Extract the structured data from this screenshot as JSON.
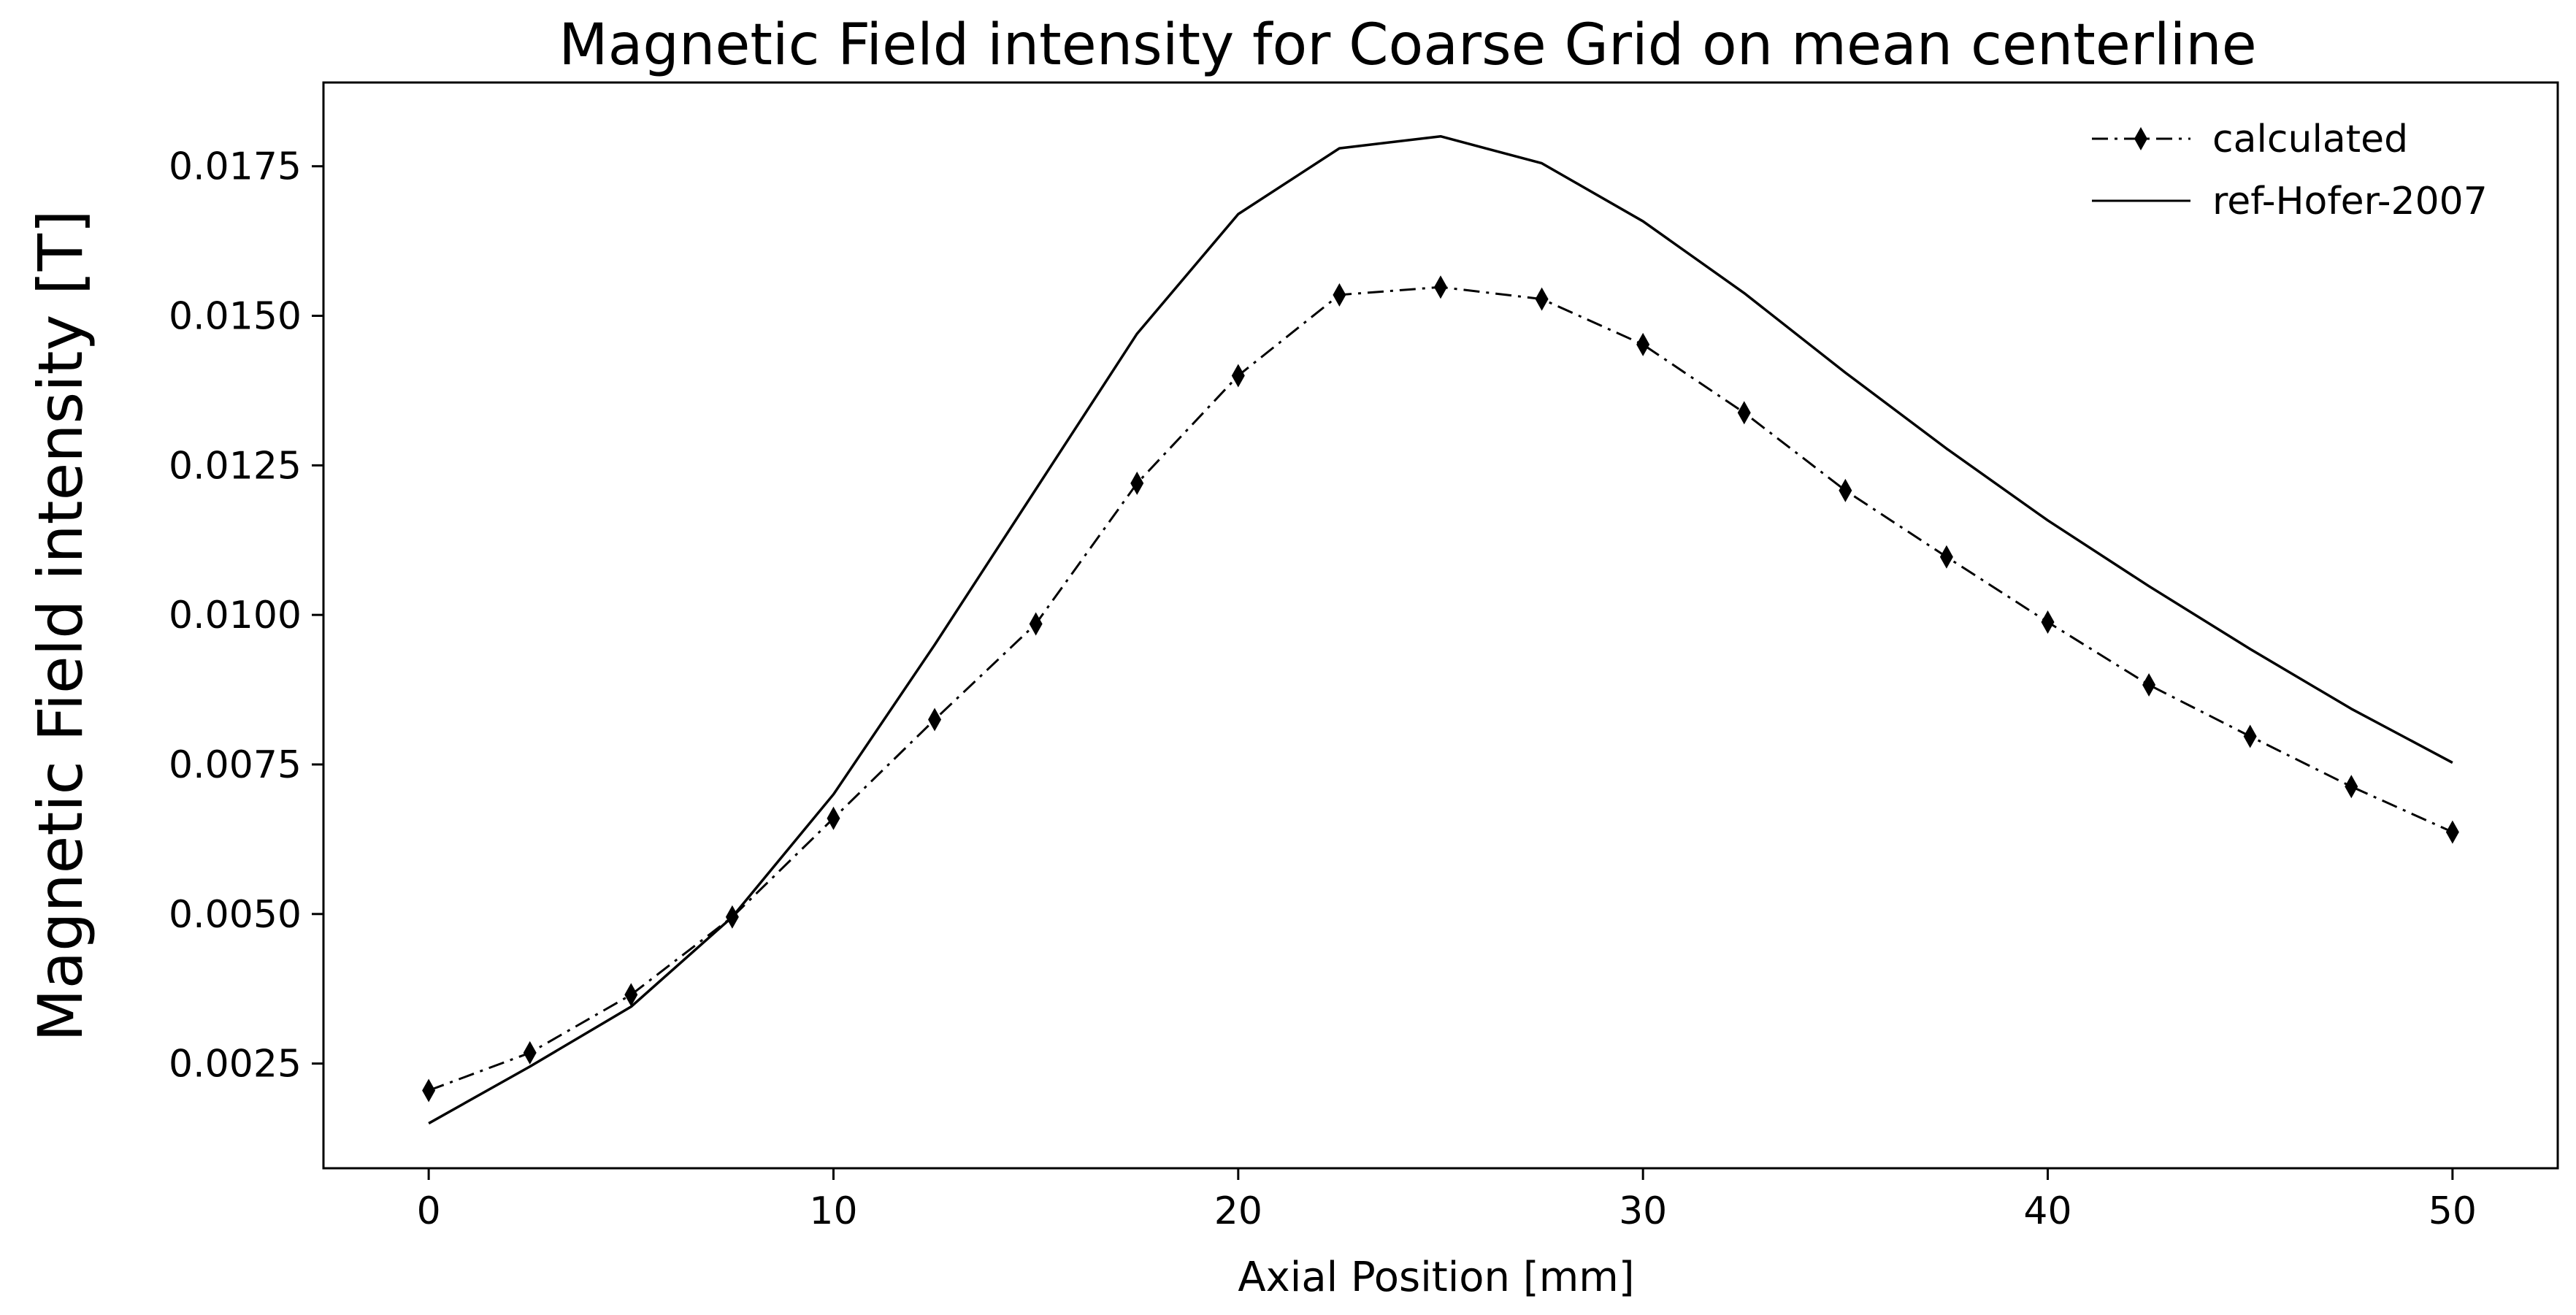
{
  "chart_data": {
    "type": "line",
    "title": "Magnetic Field intensity for Coarse Grid on mean centerline",
    "xlabel": "Axial Position [mm]",
    "ylabel": "Magnetic Field intensity [T]",
    "xlim": [
      -2.6,
      52.6
    ],
    "ylim": [
      0.00075,
      0.0189
    ],
    "xticks": [
      0,
      10,
      20,
      30,
      40,
      50
    ],
    "xtick_labels": [
      "0",
      "10",
      "20",
      "30",
      "40",
      "50"
    ],
    "yticks": [
      0.0025,
      0.005,
      0.0075,
      0.01,
      0.0125,
      0.015,
      0.0175
    ],
    "ytick_labels": [
      "0.0025",
      "0.0050",
      "0.0075",
      "0.0100",
      "0.0125",
      "0.0150",
      "0.0175"
    ],
    "grid": false,
    "legend_position": "top-right",
    "series": [
      {
        "name": "calculated",
        "style": "dash-dot with diamond markers",
        "color": "#000000",
        "x": [
          0,
          2.5,
          5,
          7.5,
          10,
          12.5,
          15,
          17.5,
          20,
          22.5,
          25,
          27.5,
          30,
          32.5,
          35,
          37.5,
          40,
          42.5,
          45,
          47.5,
          50
        ],
        "values": [
          0.00205,
          0.00268,
          0.00365,
          0.00495,
          0.0066,
          0.00825,
          0.00985,
          0.0122,
          0.014,
          0.01535,
          0.01548,
          0.01528,
          0.01452,
          0.01338,
          0.01208,
          0.01097,
          0.00988,
          0.00883,
          0.00797,
          0.00713,
          0.00637
        ]
      },
      {
        "name": "ref-Hofer-2007",
        "style": "solid",
        "color": "#000000",
        "x": [
          0,
          2.5,
          5,
          7.5,
          10,
          12.5,
          15,
          17.5,
          20,
          22.5,
          25,
          27.5,
          30,
          32.5,
          35,
          37.5,
          40,
          42.5,
          45,
          47.5,
          50
        ],
        "values": [
          0.0015,
          0.00245,
          0.00345,
          0.00495,
          0.007,
          0.0095,
          0.0121,
          0.0147,
          0.0167,
          0.0178,
          0.018,
          0.01755,
          0.01658,
          0.01538,
          0.01405,
          0.01278,
          0.01158,
          0.01048,
          0.00943,
          0.00843,
          0.00753
        ]
      }
    ]
  }
}
